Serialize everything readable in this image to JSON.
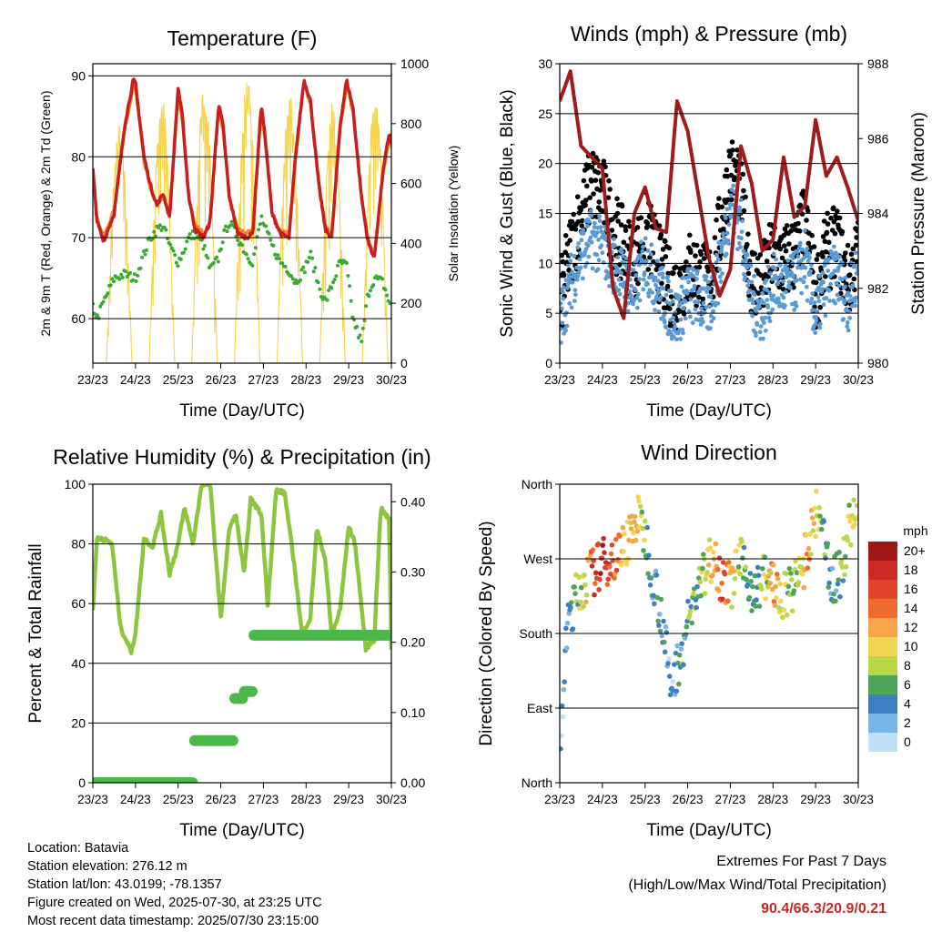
{
  "x_axis": {
    "label": "Time (Day/UTC)",
    "ticks": [
      "23/23",
      "24/23",
      "25/23",
      "26/23",
      "27/23",
      "28/23",
      "29/23",
      "30/23"
    ]
  },
  "chart_data": [
    {
      "id": "temperature",
      "type": "line",
      "title": "Temperature (F)",
      "ylabel": "2m & 9m T (Red, Orange) & 2m Td (Green)",
      "y2label": "Solar Insolation (Yellow)",
      "ylim": [
        54.5,
        91.5
      ],
      "y2lim": [
        0,
        1000
      ],
      "yticks": [
        60,
        70,
        80,
        90
      ],
      "y2ticks": [
        0,
        200,
        400,
        600,
        800,
        1000
      ],
      "grid": "y",
      "x": [
        0,
        0.1,
        0.25,
        0.5,
        0.75,
        0.95,
        1.0,
        1.2,
        1.35,
        1.5,
        1.65,
        1.8,
        2.0,
        2.1,
        2.25,
        2.4,
        2.6,
        2.75,
        2.95,
        3.05,
        3.2,
        3.4,
        3.6,
        3.75,
        3.95,
        4.05,
        4.2,
        4.4,
        4.6,
        4.75,
        4.95,
        5.1,
        5.3,
        5.45,
        5.6,
        5.8,
        5.95,
        6.1,
        6.3,
        6.45,
        6.6,
        6.8,
        6.95,
        7.0
      ],
      "series": [
        {
          "name": "2m T",
          "color": "#c81e1e",
          "values": [
            78.5,
            72,
            69.5,
            73,
            84,
            89.5,
            89,
            80,
            76.5,
            74,
            75.5,
            72.5,
            88.5,
            85,
            75,
            71,
            70,
            72,
            86.5,
            84,
            75,
            70.5,
            70,
            70.5,
            86.5,
            82,
            73,
            70.5,
            70,
            80,
            89.5,
            87,
            76.5,
            71,
            70,
            84,
            89.5,
            86,
            75,
            69.5,
            67.5,
            78,
            83,
            81.5
          ]
        },
        {
          "name": "9m T",
          "color": "#f08a24",
          "values": [
            78,
            72.5,
            70,
            73.5,
            83.5,
            88.5,
            88.5,
            79.5,
            76,
            74,
            75,
            72.5,
            87.5,
            84.5,
            75,
            71.5,
            70.5,
            72,
            86,
            83.5,
            75,
            71,
            70.5,
            71,
            86,
            81.5,
            73,
            71,
            70.5,
            79.5,
            89,
            86.5,
            76.5,
            71.5,
            70.5,
            83.5,
            89,
            85.5,
            75,
            70,
            68,
            77.5,
            82.5,
            81
          ]
        },
        {
          "name": "2m Td",
          "color": "#3aaa35",
          "values": [
            61.5,
            60,
            62,
            65,
            65.5,
            65,
            65,
            68,
            70,
            71,
            71.5,
            69,
            67,
            68,
            70,
            70.5,
            69,
            66,
            67.5,
            70,
            72,
            70,
            68,
            67,
            72.5,
            71,
            69,
            67,
            66,
            64.5,
            66,
            68,
            64,
            62,
            64,
            67,
            66.5,
            60,
            57,
            63,
            65,
            64.5,
            62,
            61.5
          ]
        }
      ],
      "insolation": {
        "name": "Solar Insolation",
        "color": "#f5d44a",
        "days": [
          {
            "start": 0.32,
            "end": 0.92,
            "peak": 800
          },
          {
            "start": 1.32,
            "end": 1.92,
            "peak": 900
          },
          {
            "start": 2.32,
            "end": 2.92,
            "peak": 930
          },
          {
            "start": 3.32,
            "end": 3.92,
            "peak": 950
          },
          {
            "start": 4.32,
            "end": 4.92,
            "peak": 920
          },
          {
            "start": 5.32,
            "end": 5.92,
            "peak": 870
          },
          {
            "start": 6.32,
            "end": 6.92,
            "peak": 900
          }
        ]
      }
    },
    {
      "id": "winds",
      "type": "scatter",
      "title": "Winds (mph) & Pressure (mb)",
      "ylabel": "Sonic Wind & Gust (Blue, Black)",
      "y2label": "Station Pressure (Maroon)",
      "ylim": [
        0,
        30
      ],
      "y2lim": [
        980,
        988
      ],
      "yticks": [
        0,
        5,
        10,
        15,
        20,
        25,
        30
      ],
      "y2ticks": [
        980,
        982,
        984,
        986,
        988
      ],
      "grid": "y",
      "x": [
        0,
        0.25,
        0.5,
        0.75,
        1.0,
        1.25,
        1.5,
        1.75,
        2.0,
        2.25,
        2.5,
        2.75,
        3.0,
        3.25,
        3.5,
        3.75,
        4.0,
        4.25,
        4.5,
        4.75,
        5.0,
        5.25,
        5.5,
        5.75,
        6.0,
        6.25,
        6.5,
        6.75,
        7.0
      ],
      "series": [
        {
          "name": "Sonic Wind",
          "color": "#5b9bd5",
          "values": [
            4,
            8,
            11,
            12.5,
            11.5,
            10,
            8.5,
            7,
            10.5,
            8,
            6,
            4.5,
            7,
            6.5,
            5.5,
            9.5,
            16,
            13.5,
            6,
            5,
            8,
            7.5,
            8,
            10.5,
            4.5,
            8,
            9,
            6,
            9.5
          ]
        },
        {
          "name": "Gust",
          "color": "#000000",
          "values": [
            6,
            11,
            15,
            18,
            17,
            13.5,
            11.5,
            10,
            13.5,
            11,
            8,
            7,
            9.5,
            9,
            8,
            13,
            19.5,
            16.5,
            8.5,
            8,
            11,
            10,
            11,
            14,
            7,
            11,
            12,
            8,
            11
          ]
        },
        {
          "name": "Station Pressure",
          "color": "#9e1c1c",
          "axis": "y2",
          "values": [
            987,
            987.8,
            985.8,
            985.5,
            985.2,
            982,
            981.2,
            984,
            984.7,
            983.6,
            983.5,
            987,
            986.2,
            984.5,
            982.8,
            981.8,
            982.5,
            985.8,
            984.8,
            983,
            983.3,
            985.5,
            983.9,
            984.2,
            986.5,
            985,
            985.5,
            984.7,
            983.8
          ]
        }
      ]
    },
    {
      "id": "humidity",
      "type": "line",
      "title": "Relative Humidity (%) & Precipitation (in)",
      "ylabel": "Percent & Total Rainfall",
      "ylim": [
        0,
        100
      ],
      "y2lim": [
        0,
        0.425
      ],
      "yticks": [
        0,
        20,
        40,
        60,
        80,
        100
      ],
      "y2ticks": [
        "0.00",
        "0.10",
        "0.20",
        "0.30",
        "0.40"
      ],
      "grid": "y",
      "x": [
        0,
        0.1,
        0.2,
        0.45,
        0.65,
        0.9,
        1.0,
        1.2,
        1.4,
        1.6,
        1.8,
        2.0,
        2.15,
        2.35,
        2.55,
        2.75,
        3.0,
        3.2,
        3.35,
        3.55,
        3.7,
        3.95,
        4.1,
        4.3,
        4.5,
        4.75,
        4.9,
        5.1,
        5.25,
        5.45,
        5.6,
        5.8,
        6.0,
        6.15,
        6.4,
        6.6,
        6.75,
        6.95,
        7.0
      ],
      "series": [
        {
          "name": "Relative Humidity",
          "color": "#8cc63f",
          "values": [
            58,
            82,
            82,
            80,
            52,
            44,
            50,
            82,
            79,
            90,
            70,
            80,
            92,
            80,
            100,
            100,
            55,
            85,
            90,
            70,
            95,
            90,
            60,
            98,
            97,
            70,
            50,
            55,
            85,
            75,
            49,
            58,
            86,
            80,
            45,
            48,
            92,
            88,
            45
          ]
        }
      ],
      "precipitation": {
        "name": "Total Precipitation",
        "color": "#4cb84a",
        "x": [
          0,
          2.35,
          2.35,
          3.3,
          3.3,
          3.55,
          3.55,
          3.75,
          3.75,
          7.0
        ],
        "values": [
          0,
          0,
          0.06,
          0.06,
          0.12,
          0.12,
          0.13,
          0.13,
          0.21,
          0.21
        ]
      }
    },
    {
      "id": "wind_direction",
      "type": "scatter",
      "title": "Wind Direction",
      "ylabel": "Direction (Colored By Speed)",
      "yticks": [
        "North",
        "East",
        "South",
        "West",
        "North"
      ],
      "ylim": [
        0,
        360
      ],
      "grid": "y",
      "x": [
        0,
        0.2,
        0.4,
        0.6,
        0.8,
        1.0,
        1.2,
        1.4,
        1.6,
        1.8,
        2.0,
        2.2,
        2.4,
        2.6,
        2.8,
        3.0,
        3.2,
        3.4,
        3.6,
        3.8,
        4.0,
        4.2,
        4.4,
        4.6,
        4.8,
        5.0,
        5.2,
        5.4,
        5.6,
        5.8,
        6.0,
        6.2,
        6.4,
        6.6,
        6.8,
        7.0
      ],
      "values": [
        40,
        200,
        225,
        245,
        255,
        265,
        270,
        275,
        295,
        320,
        300,
        245,
        200,
        110,
        150,
        190,
        230,
        250,
        280,
        245,
        235,
        270,
        245,
        230,
        250,
        240,
        220,
        230,
        245,
        275,
        325,
        290,
        240,
        255,
        310,
        345
      ],
      "speeds": [
        2,
        4,
        6,
        10,
        16,
        18,
        16,
        12,
        10,
        12,
        6,
        4,
        4,
        2,
        4,
        6,
        6,
        8,
        12,
        16,
        10,
        8,
        6,
        4,
        8,
        12,
        10,
        6,
        8,
        12,
        10,
        6,
        4,
        6,
        8,
        10
      ],
      "colorbar": {
        "title": "mph",
        "labels": [
          "20+",
          "18",
          "16",
          "14",
          "12",
          "10",
          "8",
          "6",
          "4",
          "2",
          "0"
        ],
        "colors": [
          "#a01818",
          "#cc2a26",
          "#e0422c",
          "#f06a2e",
          "#f7a548",
          "#f2d551",
          "#b8d847",
          "#4ea457",
          "#3d7fc2",
          "#79b5e4",
          "#bfe0f7"
        ]
      }
    }
  ],
  "footer": {
    "location": "Location: Batavia",
    "elevation": "Station elevation: 276.12 m",
    "latlon": "Station lat/lon: 43.0199; -78.1357",
    "created": "Figure created on Wed, 2025-07-30, at 23:25 UTC",
    "recent": "Most recent data timestamp: 2025/07/30 23:15:00",
    "extremes_title": "Extremes For Past 7 Days",
    "extremes_subtitle": "(High/Low/Max Wind/Total Precipitation)",
    "extremes_values": "90.4/66.3/20.9/0.21"
  }
}
